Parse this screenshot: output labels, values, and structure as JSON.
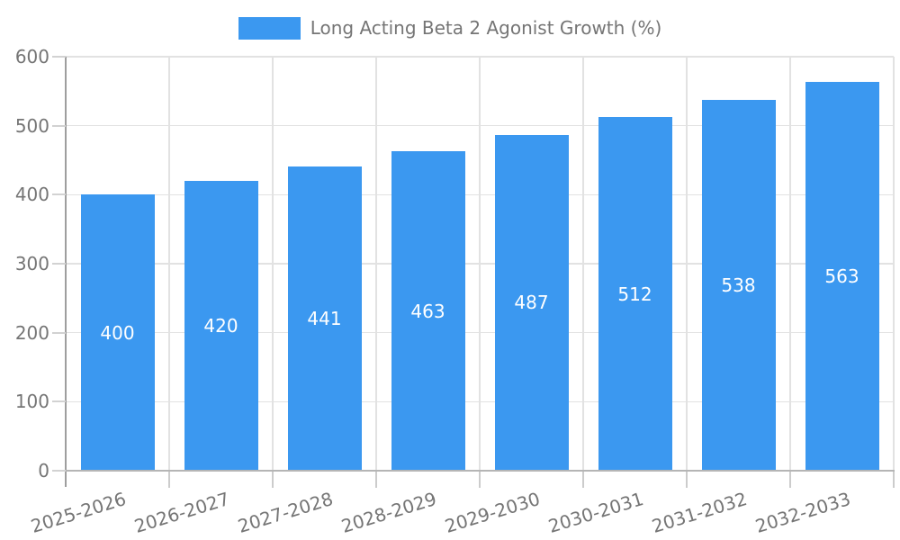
{
  "chart_data": {
    "type": "bar",
    "title": "Long Acting Beta 2 Agonist Growth (%)",
    "legend_position": "top-center",
    "categories": [
      "2025-2026",
      "2026-2027",
      "2027-2028",
      "2028-2029",
      "2029-2030",
      "2030-2031",
      "2031-2032",
      "2032-2033"
    ],
    "values": [
      400,
      420,
      441,
      463,
      487,
      512,
      538,
      563
    ],
    "xlabel": "",
    "ylabel": "",
    "ylim": [
      0,
      600
    ],
    "yticks": [
      0,
      100,
      200,
      300,
      400,
      500,
      600
    ],
    "grid": true,
    "x_label_rotation_deg": -17,
    "value_label_position": "inside-center",
    "colors": {
      "bar": "#3B98F0",
      "grid": "#e2e2e2",
      "axis_line": "#9e9e9e",
      "baseline": "#b5b5b5",
      "tick": "#cccccc",
      "axis_text": "#757575",
      "value_text": "#ffffff"
    }
  }
}
